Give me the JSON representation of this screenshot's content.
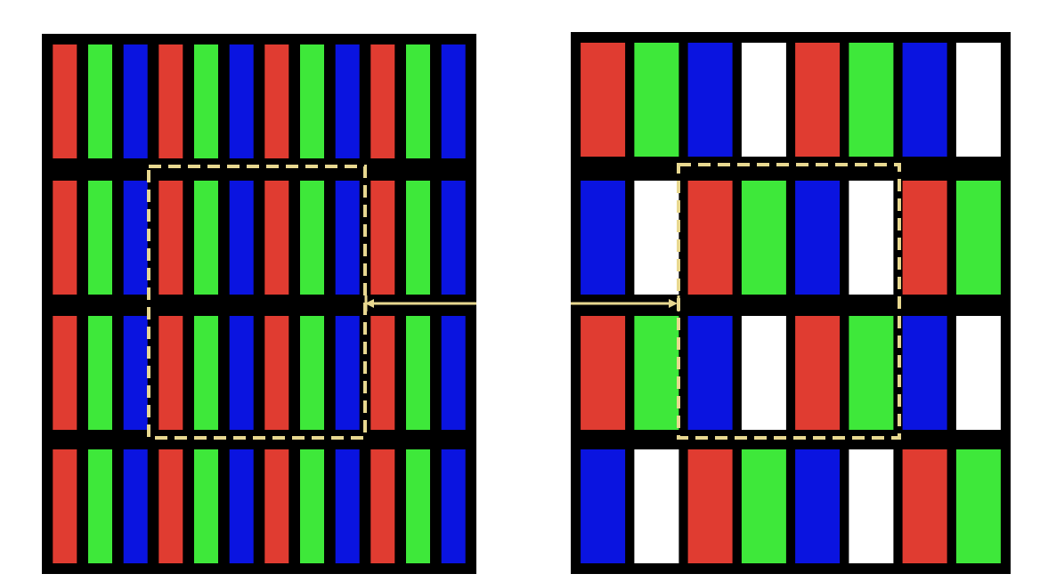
{
  "colors": {
    "R": "#e03c31",
    "G": "#3ee83a",
    "B": "#0a14e0",
    "W": "#ffffff",
    "grid": "#000000",
    "highlight": "#e8d890",
    "background": "#ffffff"
  },
  "panels": [
    {
      "name": "rgb-stripe-panel",
      "rows": [
        [
          "R",
          "G",
          "B",
          "R",
          "G",
          "B",
          "R",
          "G",
          "B",
          "R",
          "G",
          "B"
        ],
        [
          "R",
          "G",
          "B",
          "R",
          "G",
          "B",
          "R",
          "G",
          "B",
          "R",
          "G",
          "B"
        ],
        [
          "R",
          "G",
          "B",
          "R",
          "G",
          "B",
          "R",
          "G",
          "B",
          "R",
          "G",
          "B"
        ],
        [
          "R",
          "G",
          "B",
          "R",
          "G",
          "B",
          "R",
          "G",
          "B",
          "R",
          "G",
          "B"
        ]
      ]
    },
    {
      "name": "rgbw-panel",
      "rows": [
        [
          "R",
          "G",
          "B",
          "W",
          "R",
          "G",
          "B",
          "W"
        ],
        [
          "B",
          "W",
          "R",
          "G",
          "B",
          "W",
          "R",
          "G"
        ],
        [
          "R",
          "G",
          "B",
          "W",
          "R",
          "G",
          "B",
          "W"
        ],
        [
          "B",
          "W",
          "R",
          "G",
          "B",
          "W",
          "R",
          "G"
        ]
      ]
    }
  ]
}
